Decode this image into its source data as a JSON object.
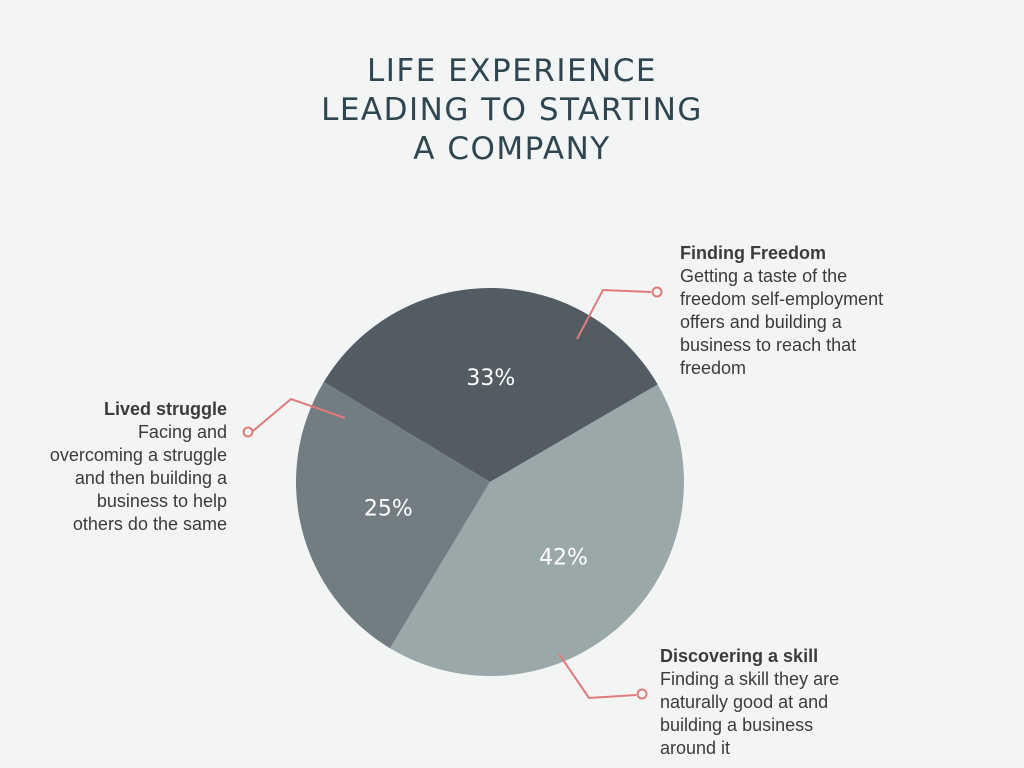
{
  "title_lines": [
    "LIFE EXPERIENCE",
    "LEADING TO STARTING",
    "A COMPANY"
  ],
  "chart_data": {
    "type": "pie",
    "title": "LIFE EXPERIENCE LEADING TO STARTING A COMPANY",
    "slices": [
      {
        "name": "Finding Freedom",
        "value": 33,
        "label": "33%",
        "color": "#545c63"
      },
      {
        "name": "Discovering a skill",
        "value": 42,
        "label": "42%",
        "color": "#9aa8aa"
      },
      {
        "name": "Lived struggle",
        "value": 25,
        "label": "25%",
        "color": "#727d82"
      }
    ]
  },
  "annotations": {
    "freedom": {
      "heading": "Finding Freedom",
      "lines": [
        "Getting a taste of the",
        "freedom self-employment",
        "offers and building a",
        "business to reach that",
        "freedom"
      ]
    },
    "struggle": {
      "heading": "Lived struggle",
      "lines": [
        "Facing and",
        "overcoming a struggle",
        "and then building a",
        "business to help",
        "others do the same"
      ]
    },
    "skill": {
      "heading": "Discovering a skill",
      "lines": [
        "Finding a skill they are",
        "naturally good at and",
        "building a business",
        "around it"
      ]
    }
  },
  "colors": {
    "leader": "#e07b7b",
    "title": "#2f4650",
    "label": "#ffffff"
  }
}
